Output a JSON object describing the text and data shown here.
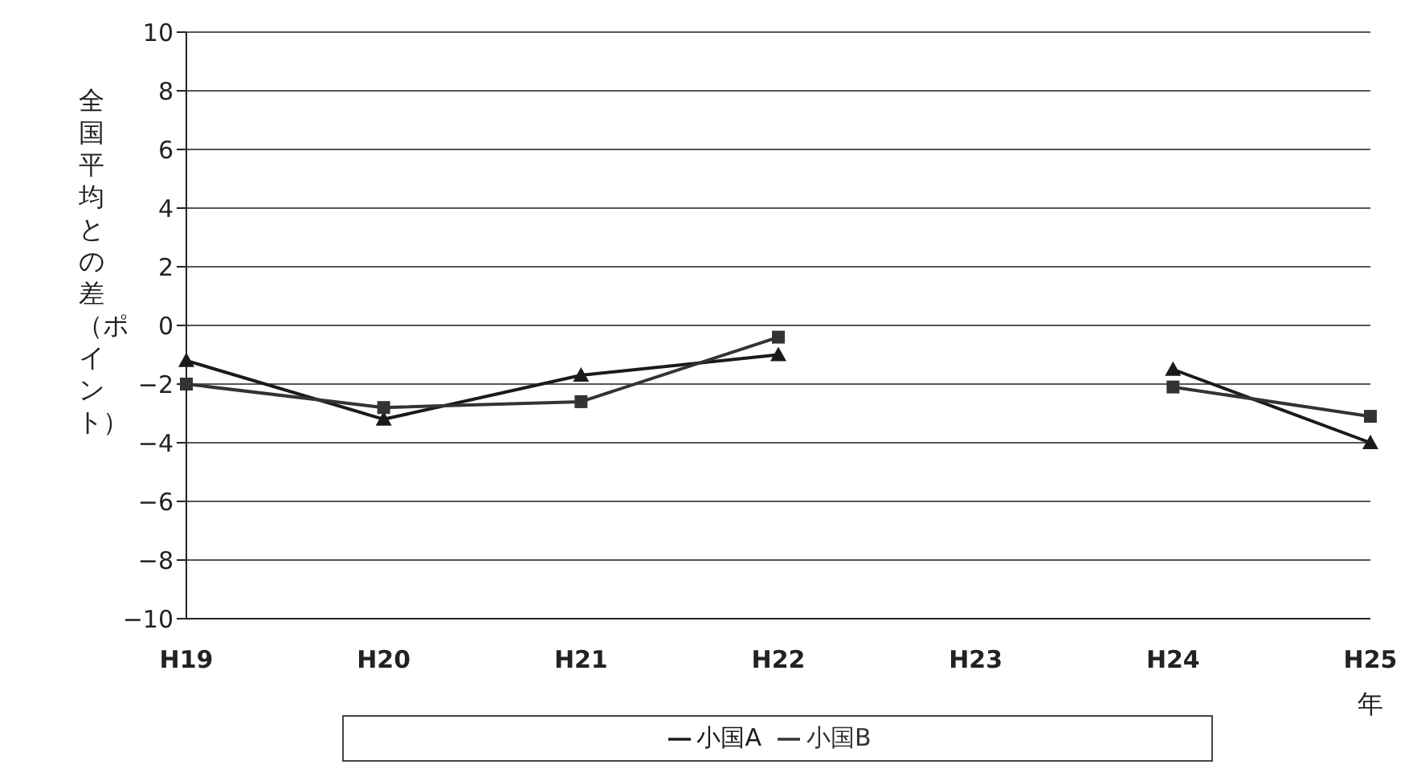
{
  "chart_data": {
    "type": "line",
    "xlabel": "年",
    "ylabel": "全国平均との差（ポイント）",
    "categories": [
      "H19",
      "H20",
      "H21",
      "H22",
      "H23",
      "H24",
      "H25"
    ],
    "series": [
      {
        "name": "小国A",
        "color": "#1a1a1a",
        "marker": "triangle",
        "values": [
          -1.2,
          -3.2,
          -1.7,
          -1.0,
          null,
          -1.5,
          -4.0
        ]
      },
      {
        "name": "小国B",
        "color": "#333333",
        "marker": "square",
        "values": [
          -2.0,
          -2.8,
          -2.6,
          -0.4,
          null,
          -2.1,
          -3.1
        ]
      }
    ],
    "ylim": [
      -10,
      10
    ],
    "yticks": [
      -10,
      -8,
      -6,
      -4,
      -2,
      0,
      2,
      4,
      6,
      8,
      10
    ],
    "grid": "y",
    "legend": "bottom",
    "line_style": "solid"
  }
}
